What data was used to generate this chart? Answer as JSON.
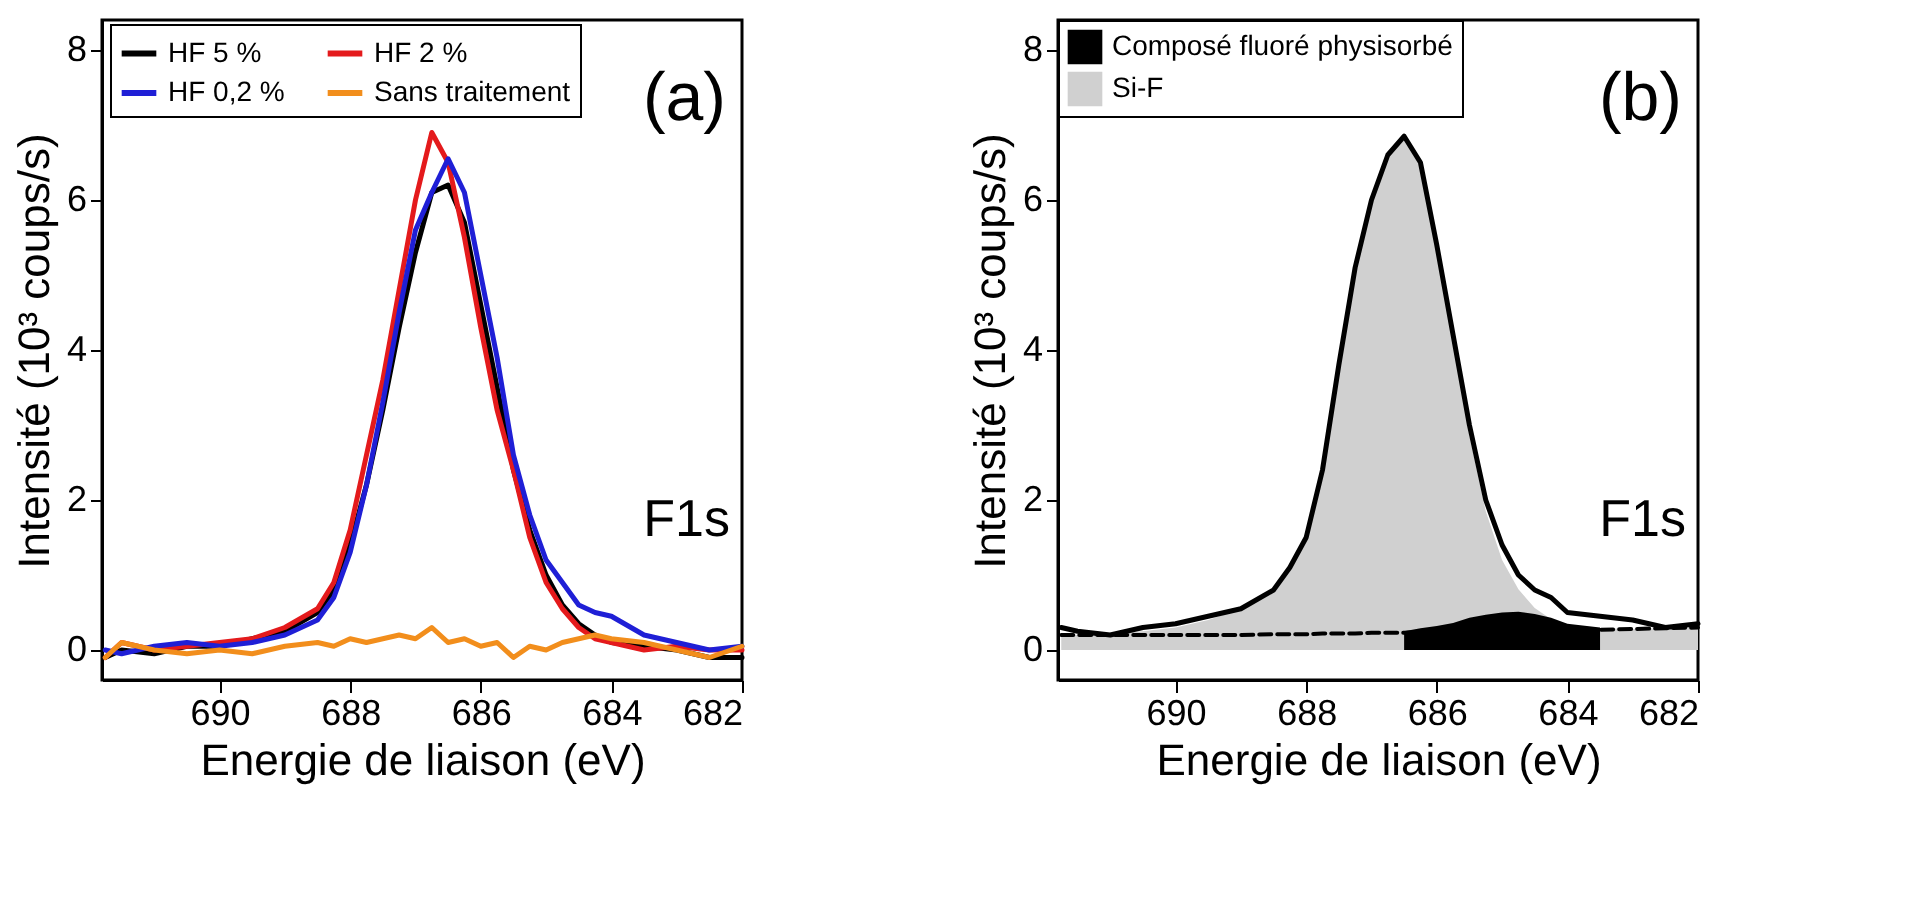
{
  "chart_data": [
    {
      "type": "line",
      "xlabel": "Energie de liaison (eV)",
      "ylabel": "Intensité (10³ coups/s)",
      "annotations": [
        "(a)",
        "F1s"
      ],
      "legend": "top",
      "grid": false,
      "line_style": "solid",
      "marker": "none",
      "x": [
        691.75,
        691.5,
        691.0,
        690.5,
        690.0,
        689.5,
        689.0,
        688.5,
        688.25,
        688.0,
        687.75,
        687.5,
        687.25,
        687.0,
        686.75,
        686.5,
        686.25,
        686.0,
        685.75,
        685.5,
        685.25,
        685.0,
        684.75,
        684.5,
        684.25,
        684.0,
        683.5,
        683.0,
        682.5,
        682.0
      ],
      "xlim": [
        691.8,
        682
      ],
      "xticks": [
        690,
        688,
        686,
        684,
        682
      ],
      "ylim": [
        -0.4,
        8.4
      ],
      "yticks": [
        0,
        2,
        4,
        6,
        8
      ],
      "series": [
        {
          "name": "HF 5 %",
          "color": "#000000",
          "values": [
            -0.1,
            0.0,
            -0.05,
            0.05,
            0.05,
            0.15,
            0.25,
            0.5,
            0.8,
            1.4,
            2.2,
            3.2,
            4.3,
            5.3,
            6.1,
            6.2,
            5.7,
            4.6,
            3.5,
            2.4,
            1.6,
            1.0,
            0.6,
            0.35,
            0.2,
            0.1,
            0.05,
            0.0,
            -0.1,
            -0.1
          ]
        },
        {
          "name": "HF 2 %",
          "color": "#e41a1c",
          "values": [
            -0.1,
            0.1,
            0.0,
            0.05,
            0.1,
            0.15,
            0.3,
            0.55,
            0.9,
            1.6,
            2.6,
            3.6,
            4.8,
            6.0,
            6.9,
            6.5,
            5.5,
            4.3,
            3.2,
            2.4,
            1.5,
            0.9,
            0.55,
            0.3,
            0.15,
            0.1,
            0.0,
            0.05,
            0.0,
            0.0
          ]
        },
        {
          "name": "HF 0,2 %",
          "color": "#1f1fd6",
          "values": [
            0.0,
            -0.05,
            0.05,
            0.1,
            0.05,
            0.1,
            0.2,
            0.4,
            0.7,
            1.3,
            2.2,
            3.3,
            4.5,
            5.6,
            6.1,
            6.55,
            6.1,
            5.0,
            3.9,
            2.6,
            1.8,
            1.2,
            0.9,
            0.6,
            0.5,
            0.45,
            0.2,
            0.1,
            0.0,
            0.05
          ]
        },
        {
          "name": "Sans traitement",
          "color": "#f28e1c",
          "values": [
            -0.1,
            0.1,
            0.0,
            -0.05,
            0.0,
            -0.05,
            0.05,
            0.1,
            0.05,
            0.15,
            0.1,
            0.15,
            0.2,
            0.15,
            0.3,
            0.1,
            0.15,
            0.05,
            0.1,
            -0.1,
            0.05,
            0.0,
            0.1,
            0.15,
            0.2,
            0.15,
            0.1,
            0.0,
            -0.1,
            0.05
          ]
        }
      ]
    },
    {
      "type": "line",
      "xlabel": "Energie de liaison (eV)",
      "ylabel": "Intensité (10³ coups/s)",
      "annotations": [
        "(b)",
        "F1s"
      ],
      "legend": "top left",
      "grid": false,
      "marker": "none",
      "x": [
        691.75,
        691.5,
        691.0,
        690.5,
        690.0,
        689.5,
        689.0,
        688.5,
        688.25,
        688.0,
        687.75,
        687.5,
        687.25,
        687.0,
        686.75,
        686.5,
        686.25,
        686.0,
        685.75,
        685.5,
        685.25,
        685.0,
        684.75,
        684.5,
        684.25,
        684.0,
        683.5,
        683.0,
        682.5,
        682.0
      ],
      "xlim": [
        691.8,
        682
      ],
      "xticks": [
        690,
        688,
        686,
        684,
        682
      ],
      "ylim": [
        -0.4,
        8.4
      ],
      "yticks": [
        0,
        2,
        4,
        6,
        8
      ],
      "series": [
        {
          "type": "line",
          "line_style": "dashed",
          "color": "#000000",
          "values": [
            0.2,
            0.2,
            0.2,
            0.2,
            0.2,
            0.2,
            0.2,
            0.21,
            0.21,
            0.21,
            0.22,
            0.22,
            0.22,
            0.23,
            0.23,
            0.23,
            0.24,
            0.24,
            0.24,
            0.25,
            0.25,
            0.25,
            0.26,
            0.26,
            0.26,
            0.27,
            0.27,
            0.28,
            0.29,
            0.3
          ]
        },
        {
          "type": "area",
          "name": "Composé fluoré physisorbé",
          "color": "#000000",
          "values": [
            null,
            null,
            null,
            null,
            null,
            null,
            null,
            null,
            null,
            null,
            null,
            null,
            null,
            null,
            null,
            0.25,
            0.29,
            0.32,
            0.36,
            0.43,
            0.47,
            0.5,
            0.51,
            0.48,
            0.43,
            0.35,
            0.3,
            null,
            null,
            null
          ]
        },
        {
          "type": "area",
          "name": "Si-F",
          "color": "#d0d0d0",
          "values": [
            0.2,
            0.2,
            0.22,
            0.25,
            0.3,
            0.4,
            0.55,
            0.81,
            1.11,
            1.51,
            2.42,
            3.77,
            5.07,
            5.98,
            6.58,
            6.83,
            6.44,
            5.34,
            4.14,
            2.85,
            1.85,
            1.2,
            0.81,
            0.56,
            0.41,
            0.34,
            0.29,
            0.28,
            0.29,
            0.3
          ]
        },
        {
          "type": "line",
          "line_style": "solid",
          "color": "#000000",
          "values": [
            0.3,
            0.25,
            0.2,
            0.3,
            0.35,
            0.45,
            0.55,
            0.8,
            1.1,
            1.5,
            2.4,
            3.8,
            5.1,
            6.0,
            6.6,
            6.85,
            6.5,
            5.4,
            4.2,
            3.0,
            2.0,
            1.4,
            1.0,
            0.8,
            0.7,
            0.5,
            0.45,
            0.4,
            0.3,
            0.35
          ]
        }
      ]
    }
  ]
}
